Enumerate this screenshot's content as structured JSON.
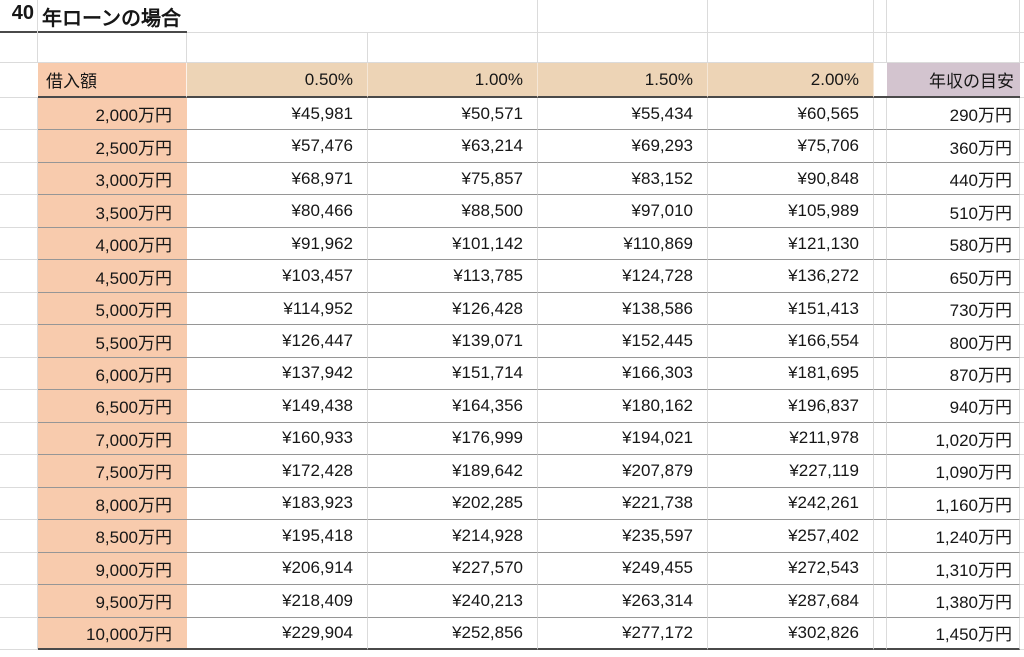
{
  "title": {
    "years": "40",
    "label": "年ローンの場合"
  },
  "table": {
    "corner_header": "借入額",
    "rate_headers": [
      "0.50%",
      "1.00%",
      "1.50%",
      "2.00%"
    ],
    "income_header": "年収の目安",
    "rows": [
      {
        "amount": "2,000万円",
        "payments": [
          "¥45,981",
          "¥50,571",
          "¥55,434",
          "¥60,565"
        ],
        "income": "290万円"
      },
      {
        "amount": "2,500万円",
        "payments": [
          "¥57,476",
          "¥63,214",
          "¥69,293",
          "¥75,706"
        ],
        "income": "360万円"
      },
      {
        "amount": "3,000万円",
        "payments": [
          "¥68,971",
          "¥75,857",
          "¥83,152",
          "¥90,848"
        ],
        "income": "440万円"
      },
      {
        "amount": "3,500万円",
        "payments": [
          "¥80,466",
          "¥88,500",
          "¥97,010",
          "¥105,989"
        ],
        "income": "510万円"
      },
      {
        "amount": "4,000万円",
        "payments": [
          "¥91,962",
          "¥101,142",
          "¥110,869",
          "¥121,130"
        ],
        "income": "580万円"
      },
      {
        "amount": "4,500万円",
        "payments": [
          "¥103,457",
          "¥113,785",
          "¥124,728",
          "¥136,272"
        ],
        "income": "650万円"
      },
      {
        "amount": "5,000万円",
        "payments": [
          "¥114,952",
          "¥126,428",
          "¥138,586",
          "¥151,413"
        ],
        "income": "730万円"
      },
      {
        "amount": "5,500万円",
        "payments": [
          "¥126,447",
          "¥139,071",
          "¥152,445",
          "¥166,554"
        ],
        "income": "800万円"
      },
      {
        "amount": "6,000万円",
        "payments": [
          "¥137,942",
          "¥151,714",
          "¥166,303",
          "¥181,695"
        ],
        "income": "870万円"
      },
      {
        "amount": "6,500万円",
        "payments": [
          "¥149,438",
          "¥164,356",
          "¥180,162",
          "¥196,837"
        ],
        "income": "940万円"
      },
      {
        "amount": "7,000万円",
        "payments": [
          "¥160,933",
          "¥176,999",
          "¥194,021",
          "¥211,978"
        ],
        "income": "1,020万円"
      },
      {
        "amount": "7,500万円",
        "payments": [
          "¥172,428",
          "¥189,642",
          "¥207,879",
          "¥227,119"
        ],
        "income": "1,090万円"
      },
      {
        "amount": "8,000万円",
        "payments": [
          "¥183,923",
          "¥202,285",
          "¥221,738",
          "¥242,261"
        ],
        "income": "1,160万円"
      },
      {
        "amount": "8,500万円",
        "payments": [
          "¥195,418",
          "¥214,928",
          "¥235,597",
          "¥257,402"
        ],
        "income": "1,240万円"
      },
      {
        "amount": "9,000万円",
        "payments": [
          "¥206,914",
          "¥227,570",
          "¥249,455",
          "¥272,543"
        ],
        "income": "1,310万円"
      },
      {
        "amount": "9,500万円",
        "payments": [
          "¥218,409",
          "¥240,213",
          "¥263,314",
          "¥287,684"
        ],
        "income": "1,380万円"
      },
      {
        "amount": "10,000万円",
        "payments": [
          "¥229,904",
          "¥252,856",
          "¥277,172",
          "¥302,826"
        ],
        "income": "1,450万円"
      }
    ]
  },
  "colors": {
    "amount_fill": "#F8CBAD",
    "rate_fill": "#EDD4B6",
    "income_fill": "#D3C4CF",
    "dark_border": "#4a4a4a",
    "row_border": "#969696",
    "gridline": "#DBDBDB"
  }
}
